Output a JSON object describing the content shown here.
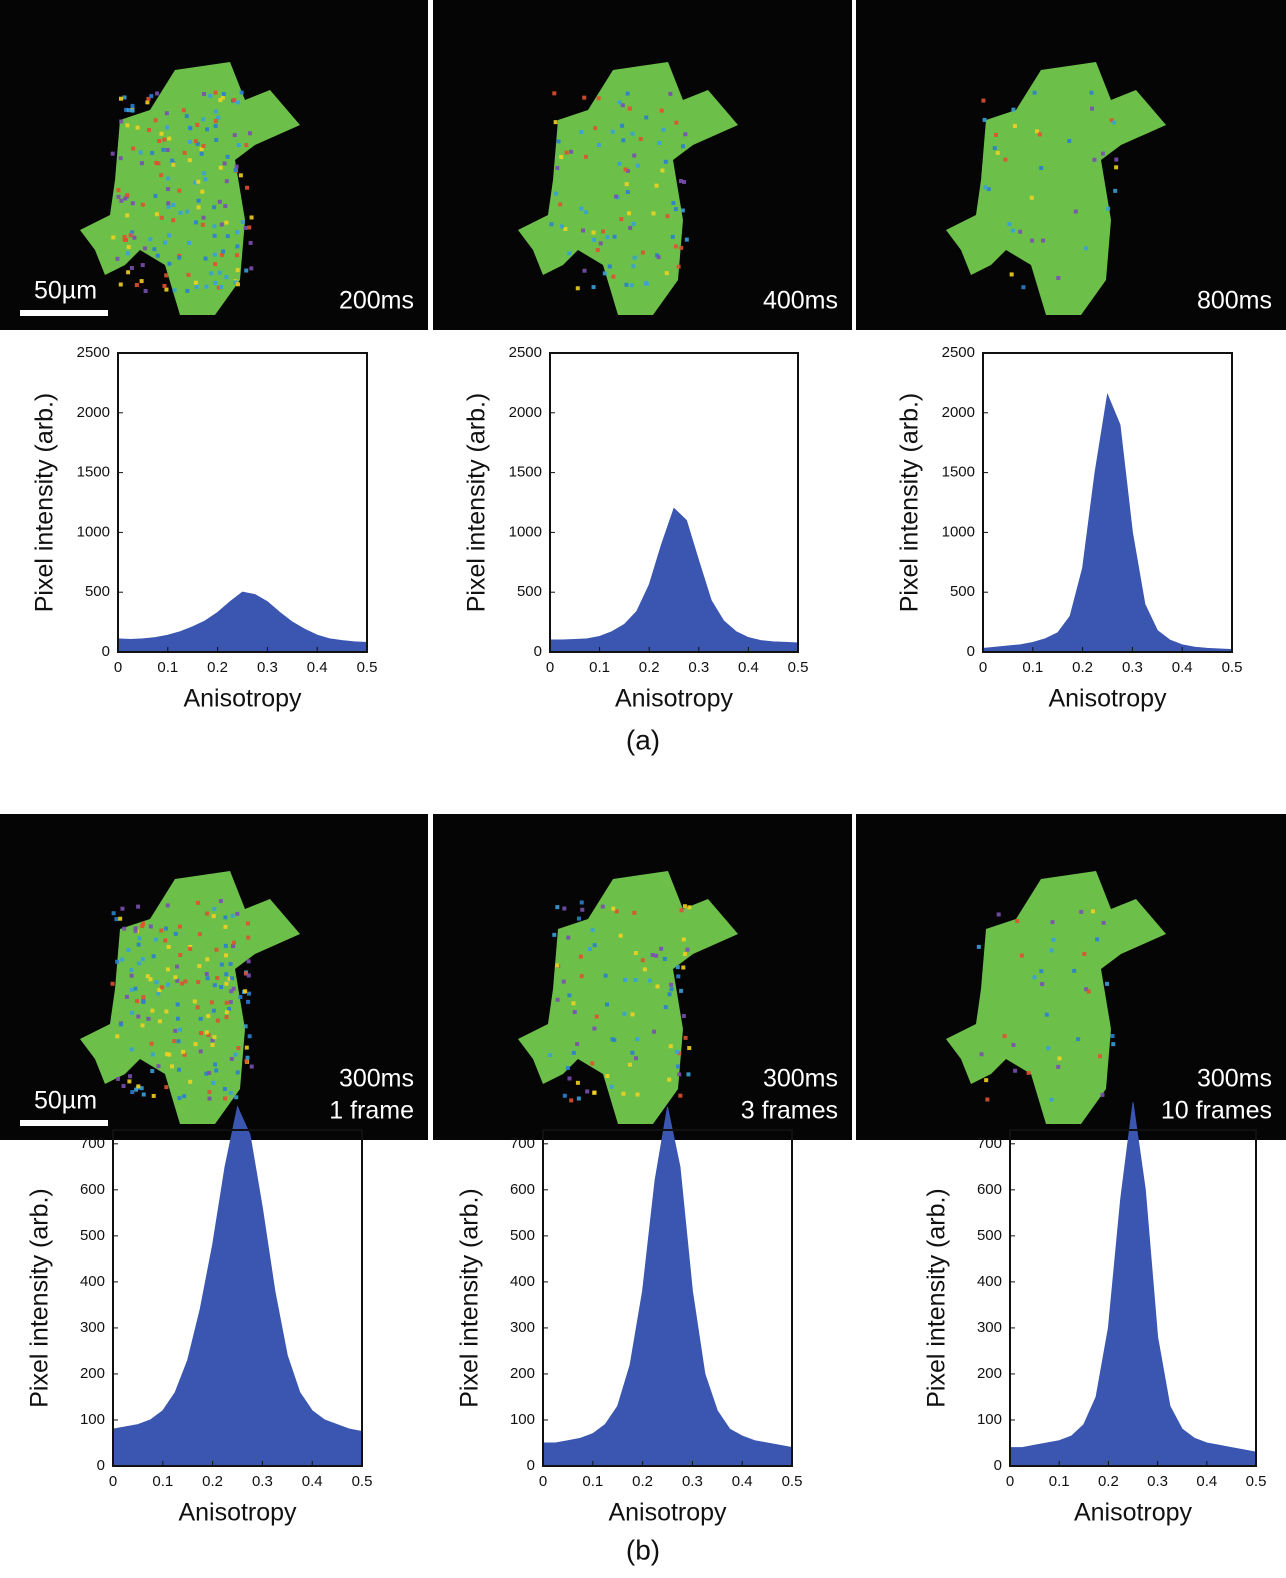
{
  "images": [
    {
      "labels": [
        "200ms"
      ],
      "scale_bar": "50µm"
    },
    {
      "labels": [
        "400ms"
      ]
    },
    {
      "labels": [
        "800ms"
      ]
    },
    {
      "labels": [
        "300ms",
        "1 frame"
      ],
      "scale_bar": "50µm"
    },
    {
      "labels": [
        "300ms",
        "3 frames"
      ]
    },
    {
      "labels": [
        "300ms",
        "10 frames"
      ]
    }
  ],
  "panel_labels": [
    "(a)",
    "(b)"
  ],
  "chart_data": [
    {
      "type": "area",
      "x_label": "Anisotropy",
      "y_label": "Pixel intensity (arb.)",
      "color": "#3a56b0",
      "x": [
        0,
        0.025,
        0.05,
        0.075,
        0.1,
        0.125,
        0.15,
        0.175,
        0.2,
        0.225,
        0.25,
        0.275,
        0.3,
        0.325,
        0.35,
        0.375,
        0.4,
        0.425,
        0.45,
        0.475,
        0.5
      ],
      "values": [
        110,
        105,
        110,
        120,
        140,
        170,
        210,
        260,
        330,
        420,
        500,
        480,
        420,
        330,
        250,
        190,
        140,
        110,
        95,
        85,
        80
      ],
      "xlim": [
        0,
        0.5
      ],
      "xticks": [
        0,
        0.1,
        0.2,
        0.3,
        0.4,
        0.5
      ],
      "ylim": [
        0,
        2500
      ],
      "yticks": [
        0,
        500,
        1000,
        1500,
        2000,
        2500
      ]
    },
    {
      "type": "area",
      "x_label": "Anisotropy",
      "y_label": "Pixel intensity (arb.)",
      "color": "#3a56b0",
      "x": [
        0,
        0.025,
        0.05,
        0.075,
        0.1,
        0.125,
        0.15,
        0.175,
        0.2,
        0.225,
        0.25,
        0.275,
        0.3,
        0.325,
        0.35,
        0.375,
        0.4,
        0.425,
        0.45,
        0.475,
        0.5
      ],
      "values": [
        100,
        100,
        105,
        110,
        130,
        170,
        230,
        340,
        560,
        900,
        1200,
        1100,
        760,
        430,
        260,
        170,
        120,
        95,
        85,
        80,
        75
      ],
      "xlim": [
        0,
        0.5
      ],
      "xticks": [
        0,
        0.1,
        0.2,
        0.3,
        0.4,
        0.5
      ],
      "ylim": [
        0,
        2500
      ],
      "yticks": [
        0,
        500,
        1000,
        1500,
        2000,
        2500
      ]
    },
    {
      "type": "area",
      "x_label": "Anisotropy",
      "y_label": "Pixel intensity (arb.)",
      "color": "#3a56b0",
      "x": [
        0,
        0.025,
        0.05,
        0.075,
        0.1,
        0.125,
        0.15,
        0.175,
        0.2,
        0.225,
        0.25,
        0.275,
        0.3,
        0.325,
        0.35,
        0.375,
        0.4,
        0.425,
        0.45,
        0.475,
        0.5
      ],
      "values": [
        30,
        40,
        50,
        60,
        80,
        110,
        160,
        300,
        700,
        1500,
        2150,
        1900,
        1000,
        400,
        180,
        100,
        60,
        40,
        30,
        25,
        20
      ],
      "xlim": [
        0,
        0.5
      ],
      "xticks": [
        0,
        0.1,
        0.2,
        0.3,
        0.4,
        0.5
      ],
      "ylim": [
        0,
        2500
      ],
      "yticks": [
        0,
        500,
        1000,
        1500,
        2000,
        2500
      ]
    },
    {
      "type": "area",
      "x_label": "Anisotropy",
      "y_label": "Pixel intensity (arb.)",
      "color": "#3a56b0",
      "x": [
        0,
        0.025,
        0.05,
        0.075,
        0.1,
        0.125,
        0.15,
        0.175,
        0.2,
        0.225,
        0.25,
        0.275,
        0.3,
        0.325,
        0.35,
        0.375,
        0.4,
        0.425,
        0.45,
        0.475,
        0.5
      ],
      "values": [
        80,
        85,
        90,
        100,
        120,
        160,
        230,
        340,
        480,
        650,
        780,
        720,
        560,
        380,
        240,
        160,
        120,
        100,
        90,
        80,
        75
      ],
      "xlim": [
        0,
        0.5
      ],
      "xticks": [
        0,
        0.1,
        0.2,
        0.3,
        0.4,
        0.5
      ],
      "ylim": [
        0,
        730
      ],
      "yticks": [
        0,
        100,
        200,
        300,
        400,
        500,
        600,
        700
      ]
    },
    {
      "type": "area",
      "x_label": "Anisotropy",
      "y_label": "Pixel intensity (arb.)",
      "color": "#3a56b0",
      "x": [
        0,
        0.025,
        0.05,
        0.075,
        0.1,
        0.125,
        0.15,
        0.175,
        0.2,
        0.225,
        0.25,
        0.275,
        0.3,
        0.325,
        0.35,
        0.375,
        0.4,
        0.425,
        0.45,
        0.475,
        0.5
      ],
      "values": [
        50,
        50,
        55,
        60,
        70,
        90,
        130,
        220,
        380,
        620,
        780,
        650,
        380,
        200,
        120,
        80,
        65,
        55,
        50,
        45,
        40
      ],
      "xlim": [
        0,
        0.5
      ],
      "xticks": [
        0,
        0.1,
        0.2,
        0.3,
        0.4,
        0.5
      ],
      "ylim": [
        0,
        730
      ],
      "yticks": [
        0,
        100,
        200,
        300,
        400,
        500,
        600,
        700
      ]
    },
    {
      "type": "area",
      "x_label": "Anisotropy",
      "y_label": "Pixel intensity (arb.)",
      "color": "#3a56b0",
      "x": [
        0,
        0.025,
        0.05,
        0.075,
        0.1,
        0.125,
        0.15,
        0.175,
        0.2,
        0.225,
        0.25,
        0.275,
        0.3,
        0.325,
        0.35,
        0.375,
        0.4,
        0.425,
        0.45,
        0.475,
        0.5
      ],
      "values": [
        40,
        40,
        45,
        50,
        55,
        65,
        90,
        150,
        300,
        580,
        790,
        600,
        280,
        130,
        80,
        60,
        50,
        45,
        40,
        35,
        30
      ],
      "xlim": [
        0,
        0.5
      ],
      "xticks": [
        0,
        0.1,
        0.2,
        0.3,
        0.4,
        0.5
      ],
      "ylim": [
        0,
        730
      ],
      "yticks": [
        0,
        100,
        200,
        300,
        400,
        500,
        600,
        700
      ]
    }
  ]
}
